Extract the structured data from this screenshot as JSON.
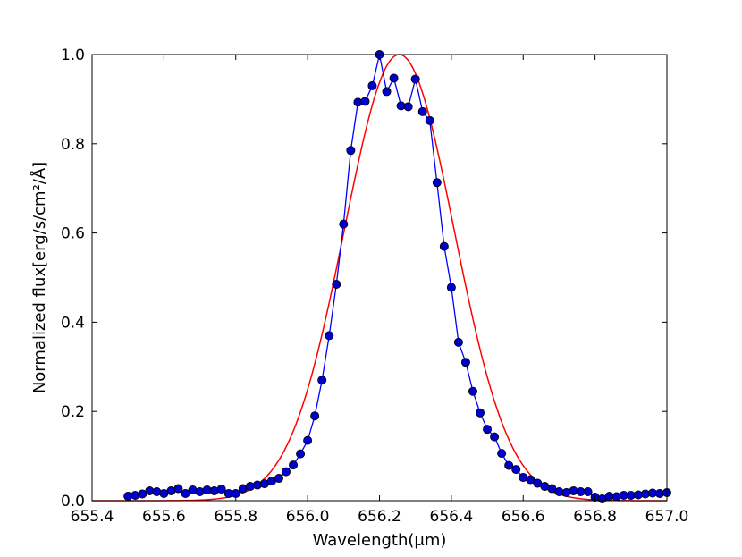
{
  "chart_data": {
    "type": "line",
    "title": "",
    "xlabel": "Wavelength(μm)",
    "ylabel": "Normalized flux[erg/s/cm²/Å]",
    "xlim": [
      655.4,
      657.0
    ],
    "ylim": [
      0.0,
      1.0
    ],
    "xticks": [
      "655.4",
      "655.6",
      "655.8",
      "656.0",
      "656.2",
      "656.4",
      "656.6",
      "656.8",
      "657.0"
    ],
    "yticks": [
      "0.0",
      "0.2",
      "0.4",
      "0.6",
      "0.8",
      "1.0"
    ],
    "grid": false,
    "legend": "none",
    "series": [
      {
        "style": "line-markers",
        "color": "#0000ff",
        "marker_color": "#0000cc",
        "x": [
          655.5,
          655.52,
          655.54,
          655.56,
          655.58,
          655.6,
          655.62,
          655.64,
          655.66,
          655.68,
          655.7,
          655.72,
          655.74,
          655.76,
          655.78,
          655.8,
          655.82,
          655.84,
          655.86,
          655.88,
          655.9,
          655.92,
          655.94,
          655.96,
          655.98,
          656.0,
          656.02,
          656.04,
          656.06,
          656.08,
          656.1,
          656.12,
          656.14,
          656.16,
          656.18,
          656.2,
          656.22,
          656.24,
          656.26,
          656.28,
          656.3,
          656.32,
          656.34,
          656.36,
          656.38,
          656.4,
          656.42,
          656.44,
          656.46,
          656.48,
          656.5,
          656.52,
          656.54,
          656.56,
          656.58,
          656.6,
          656.62,
          656.64,
          656.66,
          656.68,
          656.7,
          656.72,
          656.74,
          656.76,
          656.78,
          656.8,
          656.82,
          656.84,
          656.86,
          656.88,
          656.9,
          656.92,
          656.94,
          656.96,
          656.98,
          657.0
        ],
        "y": [
          0.01,
          0.012,
          0.015,
          0.022,
          0.02,
          0.016,
          0.022,
          0.027,
          0.016,
          0.024,
          0.02,
          0.024,
          0.022,
          0.026,
          0.016,
          0.016,
          0.027,
          0.032,
          0.035,
          0.038,
          0.044,
          0.05,
          0.065,
          0.08,
          0.105,
          0.135,
          0.19,
          0.27,
          0.37,
          0.485,
          0.62,
          0.785,
          0.893,
          0.895,
          0.93,
          1.0,
          0.917,
          0.947,
          0.885,
          0.883,
          0.945,
          0.872,
          0.852,
          0.713,
          0.57,
          0.478,
          0.355,
          0.31,
          0.245,
          0.197,
          0.16,
          0.143,
          0.106,
          0.079,
          0.07,
          0.052,
          0.047,
          0.039,
          0.032,
          0.027,
          0.02,
          0.018,
          0.022,
          0.02,
          0.02,
          0.008,
          0.004,
          0.01,
          0.009,
          0.012,
          0.012,
          0.013,
          0.015,
          0.017,
          0.016,
          0.018
        ]
      },
      {
        "style": "curve",
        "color": "#ff0000",
        "model": "gaussian",
        "amplitude": 1.0,
        "center": 656.255,
        "sigma": 0.153
      }
    ]
  }
}
